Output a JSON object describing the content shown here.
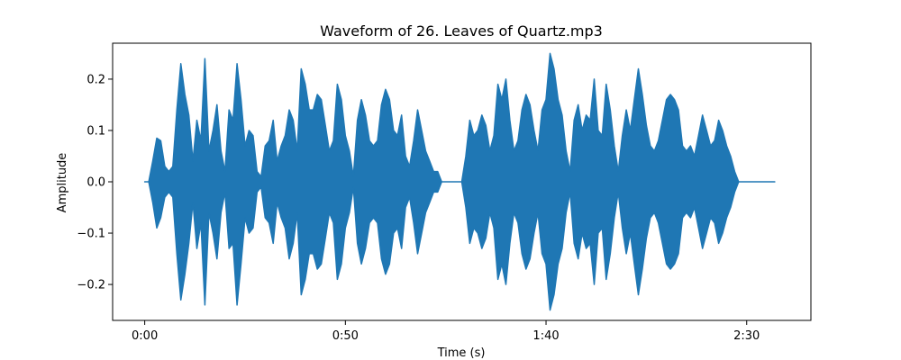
{
  "chart_data": {
    "type": "line",
    "title": "Waveform of 26. Leaves of Quartz.mp3",
    "xlabel": "Time (s)",
    "ylabel": "Amplitude",
    "xlim": [
      -8,
      166
    ],
    "ylim": [
      -0.27,
      0.27
    ],
    "x_ticks": [
      {
        "value": 0,
        "label": "0:00"
      },
      {
        "value": 50,
        "label": "0:50"
      },
      {
        "value": 100,
        "label": "1:40"
      },
      {
        "value": 150,
        "label": "2:30"
      }
    ],
    "y_ticks": [
      {
        "value": 0.2,
        "label": "0.2"
      },
      {
        "value": 0.1,
        "label": "0.1"
      },
      {
        "value": 0.0,
        "label": "0.0"
      },
      {
        "value": -0.1,
        "label": "−0.1"
      },
      {
        "value": -0.2,
        "label": "−0.2"
      }
    ],
    "grid": false,
    "color": "#1f77b4",
    "series": [
      {
        "x": [
          0,
          1,
          2,
          3,
          4,
          5,
          6,
          7,
          8,
          9,
          10,
          11,
          12,
          13,
          14,
          15,
          16,
          17,
          18,
          19,
          20,
          21,
          22,
          23,
          24,
          25,
          26,
          27,
          28,
          29,
          30,
          31,
          32,
          33,
          34,
          35,
          36,
          37,
          38,
          39,
          40,
          41,
          42,
          43,
          44,
          45,
          46,
          47,
          48,
          49,
          50,
          51,
          52,
          53,
          54,
          55,
          56,
          57,
          58,
          59,
          60,
          61,
          62,
          63,
          64,
          65,
          66,
          67,
          68,
          69,
          70,
          71,
          72,
          73,
          74,
          75,
          76,
          77,
          78,
          79,
          80,
          81,
          82,
          83,
          84,
          85,
          86,
          87,
          88,
          89,
          90,
          91,
          92,
          93,
          94,
          95,
          96,
          97,
          98,
          99,
          100,
          101,
          102,
          103,
          104,
          105,
          106,
          107,
          108,
          109,
          110,
          111,
          112,
          113,
          114,
          115,
          116,
          117,
          118,
          119,
          120,
          121,
          122,
          123,
          124,
          125,
          126,
          127,
          128,
          129,
          130,
          131,
          132,
          133,
          134,
          135,
          136,
          137,
          138,
          139,
          140,
          141,
          142,
          143,
          144,
          145,
          146,
          147,
          148,
          149,
          150,
          151,
          152,
          153,
          154,
          155,
          156,
          157
        ],
        "upper": [
          0.0,
          0.0,
          0.04,
          0.085,
          0.08,
          0.03,
          0.02,
          0.03,
          0.14,
          0.23,
          0.17,
          0.13,
          0.04,
          0.12,
          0.08,
          0.24,
          0.06,
          0.1,
          0.15,
          0.06,
          0.02,
          0.14,
          0.12,
          0.23,
          0.16,
          0.07,
          0.1,
          0.09,
          0.02,
          0.01,
          0.07,
          0.08,
          0.12,
          0.04,
          0.07,
          0.09,
          0.14,
          0.12,
          0.06,
          0.22,
          0.19,
          0.14,
          0.14,
          0.17,
          0.16,
          0.11,
          0.06,
          0.08,
          0.19,
          0.16,
          0.09,
          0.06,
          0.01,
          0.12,
          0.16,
          0.13,
          0.08,
          0.07,
          0.08,
          0.15,
          0.18,
          0.16,
          0.1,
          0.09,
          0.13,
          0.05,
          0.03,
          0.08,
          0.14,
          0.1,
          0.06,
          0.04,
          0.02,
          0.02,
          0.0,
          0.0,
          0.0,
          0.0,
          0.0,
          0.0,
          0.05,
          0.12,
          0.09,
          0.1,
          0.13,
          0.11,
          0.06,
          0.09,
          0.19,
          0.16,
          0.2,
          0.12,
          0.06,
          0.08,
          0.14,
          0.17,
          0.15,
          0.1,
          0.06,
          0.14,
          0.16,
          0.25,
          0.22,
          0.16,
          0.13,
          0.06,
          0.02,
          0.12,
          0.15,
          0.1,
          0.13,
          0.12,
          0.2,
          0.1,
          0.09,
          0.19,
          0.14,
          0.07,
          0.02,
          0.09,
          0.14,
          0.1,
          0.16,
          0.22,
          0.17,
          0.11,
          0.07,
          0.06,
          0.08,
          0.12,
          0.16,
          0.17,
          0.16,
          0.14,
          0.07,
          0.06,
          0.07,
          0.05,
          0.09,
          0.13,
          0.1,
          0.07,
          0.08,
          0.12,
          0.1,
          0.07,
          0.05,
          0.02,
          0.0,
          0.0,
          0.0,
          0.0,
          0.0,
          0.0,
          0.0,
          0.0,
          0.0,
          0.0
        ],
        "lower": [
          0.0,
          0.0,
          -0.04,
          -0.09,
          -0.07,
          -0.03,
          -0.02,
          -0.03,
          -0.14,
          -0.23,
          -0.18,
          -0.12,
          -0.04,
          -0.13,
          -0.08,
          -0.24,
          -0.06,
          -0.1,
          -0.15,
          -0.06,
          -0.02,
          -0.13,
          -0.12,
          -0.24,
          -0.16,
          -0.07,
          -0.1,
          -0.09,
          -0.02,
          -0.01,
          -0.07,
          -0.08,
          -0.12,
          -0.04,
          -0.07,
          -0.09,
          -0.15,
          -0.12,
          -0.06,
          -0.22,
          -0.19,
          -0.14,
          -0.14,
          -0.17,
          -0.16,
          -0.11,
          -0.06,
          -0.08,
          -0.19,
          -0.16,
          -0.09,
          -0.06,
          -0.01,
          -0.12,
          -0.16,
          -0.13,
          -0.08,
          -0.07,
          -0.08,
          -0.15,
          -0.18,
          -0.16,
          -0.1,
          -0.09,
          -0.13,
          -0.05,
          -0.03,
          -0.08,
          -0.14,
          -0.1,
          -0.06,
          -0.04,
          -0.02,
          -0.02,
          0.0,
          0.0,
          0.0,
          0.0,
          0.0,
          0.0,
          -0.05,
          -0.12,
          -0.09,
          -0.1,
          -0.13,
          -0.11,
          -0.06,
          -0.09,
          -0.19,
          -0.16,
          -0.2,
          -0.12,
          -0.06,
          -0.08,
          -0.14,
          -0.17,
          -0.15,
          -0.1,
          -0.06,
          -0.14,
          -0.16,
          -0.25,
          -0.22,
          -0.16,
          -0.13,
          -0.06,
          -0.02,
          -0.12,
          -0.15,
          -0.1,
          -0.13,
          -0.12,
          -0.2,
          -0.1,
          -0.09,
          -0.19,
          -0.14,
          -0.07,
          -0.02,
          -0.09,
          -0.14,
          -0.1,
          -0.16,
          -0.22,
          -0.17,
          -0.11,
          -0.07,
          -0.06,
          -0.08,
          -0.12,
          -0.16,
          -0.17,
          -0.16,
          -0.14,
          -0.07,
          -0.06,
          -0.07,
          -0.05,
          -0.09,
          -0.13,
          -0.1,
          -0.07,
          -0.08,
          -0.12,
          -0.1,
          -0.07,
          -0.05,
          -0.02,
          0.0,
          0.0,
          0.0,
          0.0,
          0.0,
          0.0,
          0.0,
          0.0,
          0.0,
          0.0
        ]
      }
    ]
  }
}
